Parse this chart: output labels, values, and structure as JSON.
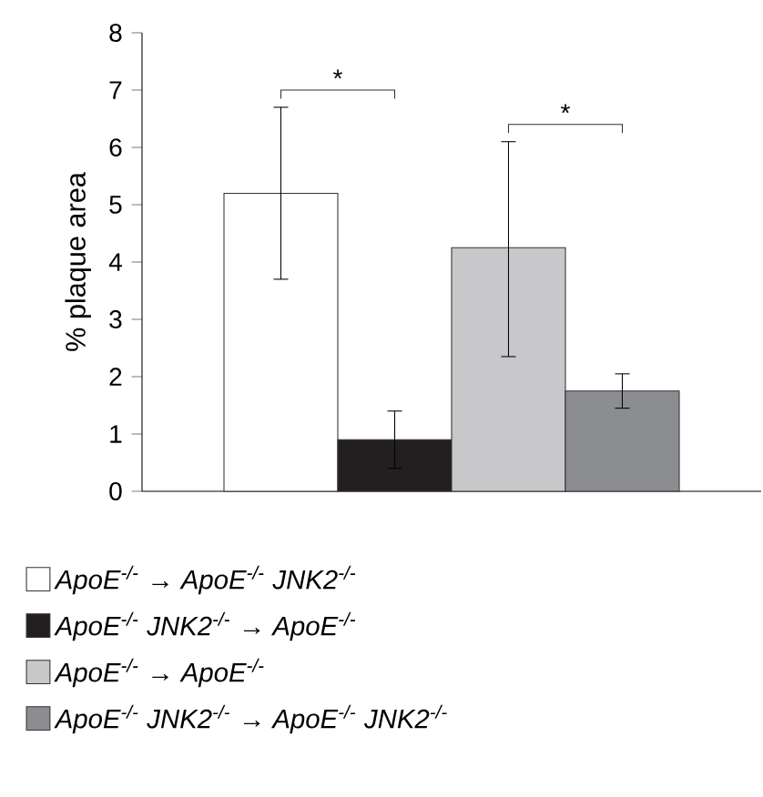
{
  "chart_data": {
    "type": "bar",
    "ylabel": "% plaque area",
    "categories": [
      null
    ],
    "series": [
      {
        "name": "*ApoE*$^{-/-}$ → *ApoE*$^{-/-}$ *JNK2*$^{-/-}$",
        "color": "#ffffff",
        "values": [
          5.2
        ],
        "errors": [
          [
            3.7,
            6.7
          ]
        ]
      },
      {
        "name": "*ApoE*$^{-/-}$ *JNK2*$^{-/-}$ → *ApoE*$^{-/-}$",
        "color": "#231f20",
        "values": [
          0.9
        ],
        "errors": [
          [
            0.4,
            1.4
          ]
        ]
      },
      {
        "name": "*ApoE*$^{-/-}$ → *ApoE*$^{-/-}$",
        "color": "#c8c8ca",
        "values": [
          4.25
        ],
        "errors": [
          [
            2.35,
            6.1
          ]
        ]
      },
      {
        "name": "*ApoE*$^{-/-}$ *JNK2*$^{-/-}$ → *ApoE*$^{-/-}$ *JNK2*$^{-/-}$",
        "color": "#8c8d90",
        "values": [
          1.75
        ],
        "errors": [
          [
            1.45,
            2.05
          ]
        ]
      }
    ],
    "ylim": [
      0,
      8
    ],
    "yticks": [
      0,
      1,
      2,
      3,
      4,
      5,
      6,
      7,
      8
    ],
    "annotations": [
      "*",
      "*"
    ],
    "legend": "bottom",
    "tick_labels": "y"
  }
}
